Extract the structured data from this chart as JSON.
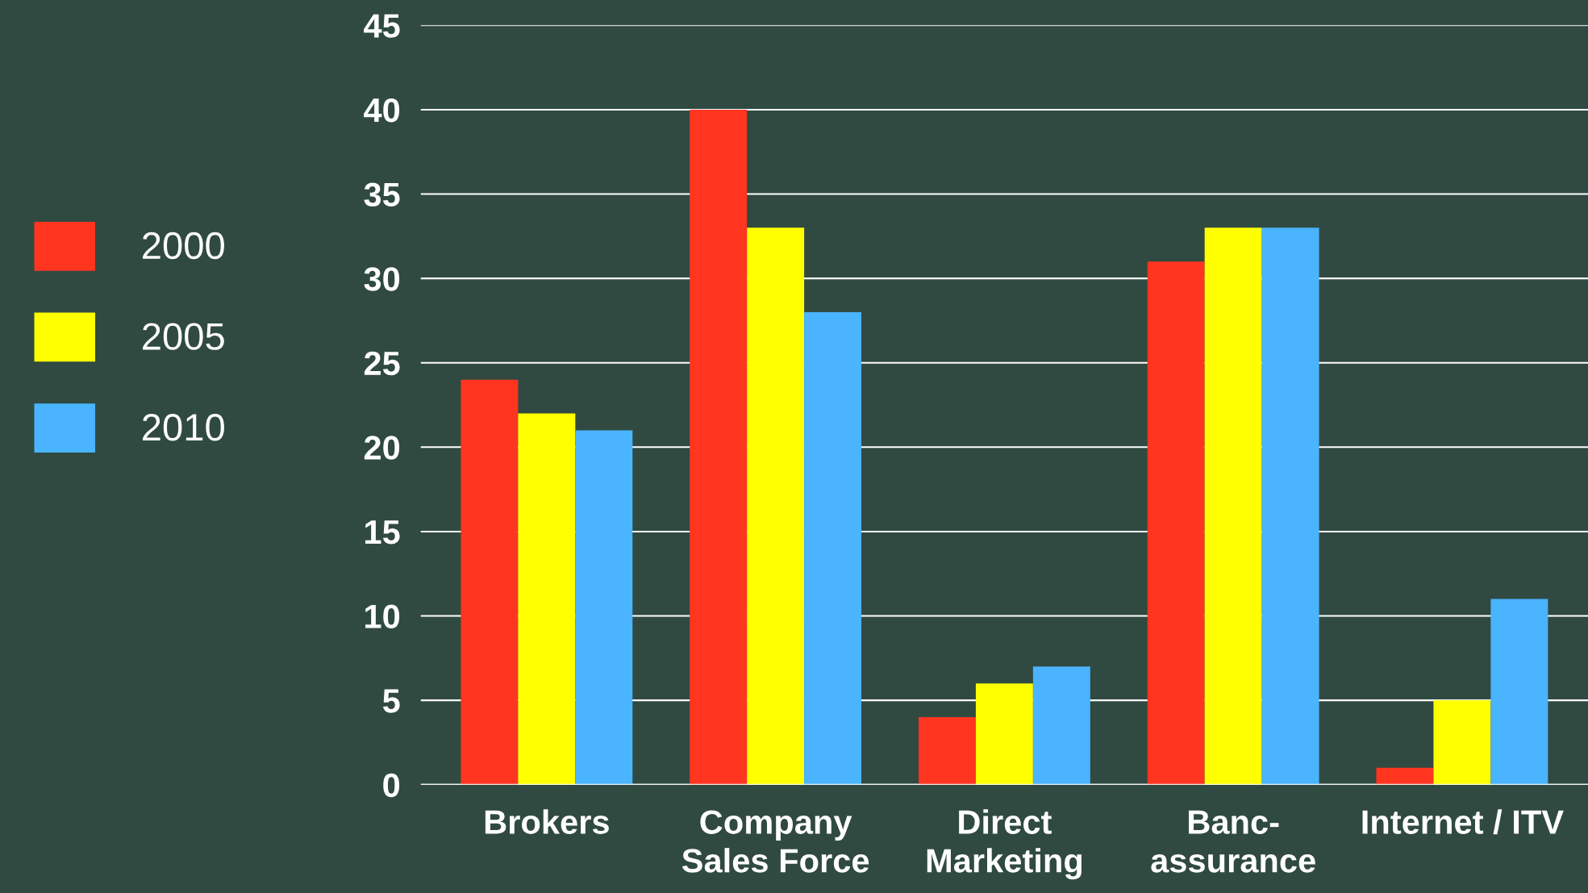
{
  "chart_data": {
    "type": "bar",
    "categories": [
      "Brokers",
      "Company\nSales Force",
      "Direct\nMarketing",
      "Banc-\nassurance",
      "Internet / ITV"
    ],
    "series": [
      {
        "name": "2000",
        "color": "#ff3520",
        "values": [
          24,
          40,
          4,
          31,
          1
        ]
      },
      {
        "name": "2005",
        "color": "#ffff00",
        "values": [
          22,
          33,
          6,
          33,
          5
        ]
      },
      {
        "name": "2010",
        "color": "#4ab4ff",
        "values": [
          21,
          28,
          7,
          33,
          11
        ]
      }
    ],
    "ylim": [
      0,
      45
    ],
    "yticks": [
      0,
      5,
      10,
      15,
      20,
      25,
      30,
      35,
      40,
      45
    ],
    "grid": "y",
    "legend": "left"
  }
}
